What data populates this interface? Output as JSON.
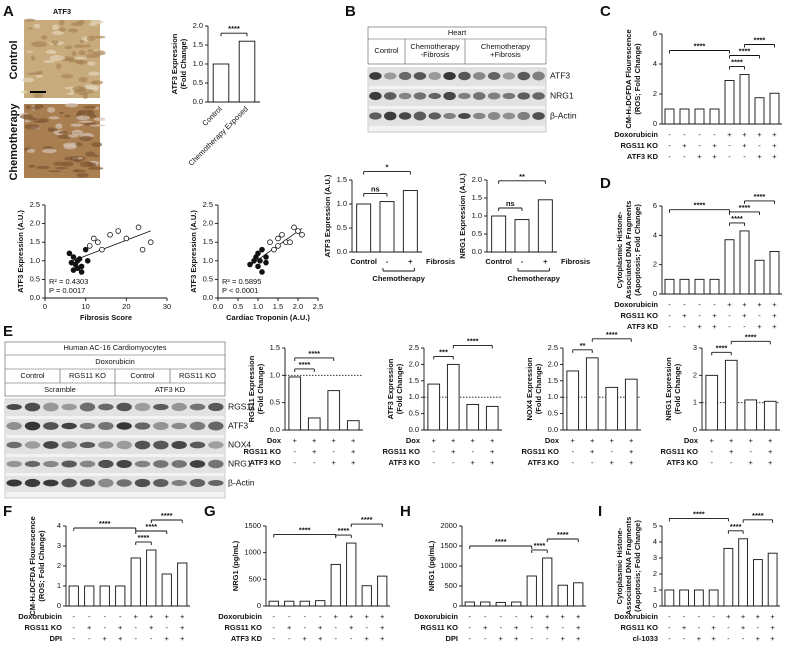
{
  "figure": {
    "panel_letters": [
      "A",
      "B",
      "C",
      "D",
      "E",
      "F",
      "G",
      "H",
      "I"
    ],
    "A": {
      "stain": "ATF3",
      "rows": [
        "Control",
        "Chemotherapy"
      ]
    },
    "B": {
      "tissue": "Heart",
      "groups": [
        [
          "Control"
        ],
        [
          "Chemotherapy",
          "-Fibrosis"
        ],
        [
          "Chemotherapy",
          "+Fibrosis"
        ]
      ],
      "bands": [
        "ATF3",
        "NRG1",
        "β-Actin"
      ]
    },
    "E": {
      "cells": "Human AC-16 Cardiomyocytes",
      "treatment": "Doxorubicin",
      "conditions": [
        "Control",
        "RGS11 KO",
        "Control",
        "RGS11 KO"
      ],
      "groups": [
        "Scramble",
        "ATF3 KD"
      ],
      "bands": [
        "RGS11",
        "ATF3",
        "NOX4",
        "NRG1",
        "β-Actin"
      ]
    }
  },
  "chart_data": [
    {
      "type": "bar",
      "ylabel": [
        "ATF3 Expression",
        "(Fold Change)"
      ],
      "categories": [
        "Control",
        "Chemotherapy Exposed"
      ],
      "values": [
        1.0,
        1.6
      ],
      "color": "#ffffff",
      "ylim": [
        0,
        2
      ],
      "yticks": [
        {
          "value": 0,
          "label": "0.0"
        },
        0.5,
        {
          "value": 1,
          "label": "1.0"
        },
        1.5,
        {
          "value": 2,
          "label": "2.0"
        }
      ],
      "significance": [
        "****"
      ]
    },
    {
      "type": "scatter",
      "ylabel": [
        "ATF3 Expression (A.U.)"
      ],
      "xlabel": "Fibrosis Score",
      "series": [
        {
          "color": "#111111",
          "filled": true,
          "x": [
            6,
            6.5,
            7,
            7,
            7.5,
            8,
            8,
            8.5,
            9,
            9,
            10,
            10.5
          ],
          "values": [
            1.2,
            0.95,
            1.1,
            0.75,
            0.9,
            1.0,
            0.8,
            1.05,
            0.85,
            0.7,
            1.3,
            1.0
          ]
        },
        {
          "color": "#111111",
          "filled": false,
          "x": [
            11,
            12,
            13,
            14,
            16,
            18,
            20,
            23,
            24,
            26
          ],
          "values": [
            1.4,
            1.6,
            1.5,
            1.3,
            1.7,
            1.8,
            1.6,
            1.9,
            1.3,
            1.5
          ]
        }
      ],
      "xlim": [
        0,
        30
      ],
      "xticks": [
        0,
        10,
        20,
        30
      ],
      "ylim": [
        0,
        2.5
      ],
      "yticks": [
        {
          "value": 0,
          "label": "0.0"
        },
        0.5,
        {
          "value": 1,
          "label": "1.0"
        },
        1.5,
        {
          "value": 2,
          "label": "2.0"
        },
        2.5
      ],
      "annotations": [
        "R² = 0.4303",
        "P = 0.0017"
      ]
    },
    {
      "type": "scatter",
      "ylabel": [
        "ATF3 Expression (A.U.)"
      ],
      "xlabel": "Cardiac  Troponin (A.U.)",
      "series": [
        {
          "color": "#111111",
          "filled": true,
          "x": [
            0.8,
            0.9,
            0.95,
            1.0,
            1.0,
            1.05,
            1.1,
            1.1,
            1.2,
            1.2
          ],
          "values": [
            0.9,
            1.0,
            1.1,
            0.85,
            1.2,
            1.0,
            0.7,
            1.3,
            1.1,
            0.95
          ]
        },
        {
          "color": "#111111",
          "filled": false,
          "x": [
            1.3,
            1.4,
            1.5,
            1.5,
            1.6,
            1.7,
            1.8,
            1.9,
            2.0,
            2.1
          ],
          "values": [
            1.5,
            1.3,
            1.6,
            1.4,
            1.7,
            1.5,
            1.5,
            1.9,
            1.8,
            1.7
          ]
        }
      ],
      "xlim": [
        0,
        2.5
      ],
      "xticks": [
        {
          "value": 0,
          "label": "0.0"
        },
        0.5,
        {
          "value": 1,
          "label": "1.0"
        },
        1.5,
        {
          "value": 2,
          "label": "2.0"
        },
        2.5
      ],
      "ylim": [
        0,
        2.5
      ],
      "yticks": [
        {
          "value": 0,
          "label": "0.0"
        },
        0.5,
        {
          "value": 1,
          "label": "1.0"
        },
        1.5,
        {
          "value": 2,
          "label": "2.0"
        },
        2.5
      ],
      "annotations": [
        "R² = 0.5895",
        "P < 0.0001"
      ]
    },
    {
      "type": "bar",
      "ylabel": [
        "ATF3 Expression (A.U.)"
      ],
      "categories": [
        "Control",
        "-",
        "+"
      ],
      "extra_label": "Fibrosis",
      "group_label": "Chemotherapy",
      "values": [
        1.0,
        1.05,
        1.28
      ],
      "color": "#ffffff",
      "ylim": [
        0,
        1.5
      ],
      "yticks": [
        {
          "value": 0,
          "label": "0.0"
        },
        0.5,
        {
          "value": 1,
          "label": "1.0"
        },
        1.5
      ],
      "significance": [
        "ns",
        "*"
      ]
    },
    {
      "type": "bar",
      "ylabel": [
        "NRG1 Expression (A.U.)"
      ],
      "categories": [
        "Control",
        "-",
        "+"
      ],
      "extra_label": "Fibrosis",
      "group_label": "Chemotherapy",
      "values": [
        1.0,
        0.9,
        1.45
      ],
      "color": "#ffffff",
      "ylim": [
        0,
        2
      ],
      "yticks": [
        {
          "value": 0,
          "label": "0.0"
        },
        0.5,
        {
          "value": 1,
          "label": "1.0"
        },
        1.5,
        {
          "value": 2,
          "label": "2.0"
        }
      ],
      "significance": [
        "ns",
        "**"
      ]
    },
    {
      "type": "bar",
      "ylabel": [
        "CM-H₂DCFDA Flourescence",
        "(ROS; Fold Change)"
      ],
      "values": [
        1.0,
        1.0,
        1.0,
        1.0,
        2.9,
        3.3,
        1.75,
        2.05
      ],
      "color": "#ffffff",
      "ylim": [
        0,
        6
      ],
      "yticks": [
        0,
        2,
        4,
        6
      ],
      "significance": [
        "****",
        "****",
        "****",
        "****"
      ],
      "conditions": [
        {
          "name": "Doxorubicin",
          "values": [
            "-",
            "-",
            "-",
            "-",
            "+",
            "+",
            "+",
            "+"
          ]
        },
        {
          "name": "RGS11 KO",
          "values": [
            "-",
            "+",
            "-",
            "+",
            "-",
            "+",
            "-",
            "+"
          ]
        },
        {
          "name": "ATF3 KD",
          "values": [
            "-",
            "-",
            "+",
            "+",
            "-",
            "-",
            "+",
            "+"
          ]
        }
      ]
    },
    {
      "type": "bar",
      "ylabel": [
        "Cytoplasmic Histone-",
        "Associated DNA Fragments",
        "(Apoptosis; Fold Change)"
      ],
      "values": [
        1.0,
        1.0,
        1.0,
        1.0,
        3.7,
        4.3,
        2.3,
        2.9
      ],
      "color": "#ffffff",
      "ylim": [
        0,
        6
      ],
      "yticks": [
        0,
        2,
        4,
        6
      ],
      "significance": [
        "****",
        "****",
        "****",
        "****"
      ],
      "conditions": [
        {
          "name": "Doxorubicin",
          "values": [
            "-",
            "-",
            "-",
            "-",
            "+",
            "+",
            "+",
            "+"
          ]
        },
        {
          "name": "RGS11 KO",
          "values": [
            "-",
            "+",
            "-",
            "+",
            "-",
            "+",
            "-",
            "+"
          ]
        },
        {
          "name": "ATF3 KD",
          "values": [
            "-",
            "-",
            "+",
            "+",
            "-",
            "-",
            "+",
            "+"
          ]
        }
      ]
    },
    {
      "type": "bar",
      "ylabel": [
        "RGS11 Expression",
        "(Fold Change)"
      ],
      "values": [
        0.97,
        0.22,
        0.72,
        0.17
      ],
      "color": "#ffffff",
      "refline": 1,
      "ylim": [
        0,
        1.5
      ],
      "yticks": [
        {
          "value": 0,
          "label": "0.0"
        },
        0.5,
        {
          "value": 1,
          "label": "1.0"
        },
        1.5
      ],
      "significance": [
        "****",
        "****"
      ],
      "conditions": [
        {
          "name": "Dox",
          "values": [
            "+",
            "+",
            "+",
            "+"
          ]
        },
        {
          "name": "RGS11 KO",
          "values": [
            "-",
            "+",
            "-",
            "+"
          ]
        },
        {
          "name": "ATF3 KO",
          "values": [
            "-",
            "-",
            "+",
            "+"
          ]
        }
      ]
    },
    {
      "type": "bar",
      "ylabel": [
        "ATF3 Expression",
        "(Fold Change)"
      ],
      "values": [
        1.4,
        2.0,
        0.78,
        0.72
      ],
      "color": "#ffffff",
      "refline": 1,
      "ylim": [
        0,
        2.5
      ],
      "yticks": [
        {
          "value": 0,
          "label": "0.0"
        },
        0.5,
        {
          "value": 1,
          "label": "1.0"
        },
        1.5,
        {
          "value": 2,
          "label": "2.0"
        },
        2.5
      ],
      "significance": [
        "***",
        "****"
      ],
      "conditions": [
        {
          "name": "Dox",
          "values": [
            "+",
            "+",
            "+",
            "+"
          ]
        },
        {
          "name": "RGS11 KO",
          "values": [
            "-",
            "+",
            "-",
            "+"
          ]
        },
        {
          "name": "ATF3 KO",
          "values": [
            "-",
            "-",
            "+",
            "+"
          ]
        }
      ]
    },
    {
      "type": "bar",
      "ylabel": [
        "NOX4 Expression",
        "(Fold Change)"
      ],
      "values": [
        1.8,
        2.2,
        1.3,
        1.55
      ],
      "color": "#ffffff",
      "refline": 1,
      "ylim": [
        0,
        2.5
      ],
      "yticks": [
        {
          "value": 0,
          "label": "0.0"
        },
        0.5,
        {
          "value": 1,
          "label": "1.0"
        },
        1.5,
        {
          "value": 2,
          "label": "2.0"
        },
        2.5
      ],
      "significance": [
        "**",
        "****"
      ],
      "conditions": [
        {
          "name": "Dox",
          "values": [
            "+",
            "+",
            "+",
            "+"
          ]
        },
        {
          "name": "RGS11 KO",
          "values": [
            "-",
            "+",
            "-",
            "+"
          ]
        },
        {
          "name": "ATF3 KO",
          "values": [
            "-",
            "-",
            "+",
            "+"
          ]
        }
      ]
    },
    {
      "type": "bar",
      "ylabel": [
        "NRG1 Expression",
        "(Fold Change)"
      ],
      "values": [
        2.0,
        2.55,
        1.1,
        1.05
      ],
      "color": "#ffffff",
      "refline": 1,
      "ylim": [
        0,
        3
      ],
      "yticks": [
        0,
        1,
        2,
        3
      ],
      "significance": [
        "****",
        "****"
      ],
      "conditions": [
        {
          "name": "Dox",
          "values": [
            "+",
            "+",
            "+",
            "+"
          ]
        },
        {
          "name": "RGS11 KO",
          "values": [
            "-",
            "+",
            "-",
            "+"
          ]
        },
        {
          "name": "ATF3 KO",
          "values": [
            "-",
            "-",
            "+",
            "+"
          ]
        }
      ]
    },
    {
      "type": "bar",
      "ylabel": [
        "CM-H₂DCFDA Flourescence",
        "(ROS; Fold Change)"
      ],
      "values": [
        1.0,
        1.0,
        1.0,
        1.0,
        2.4,
        2.8,
        1.6,
        2.15
      ],
      "color": "#ffffff",
      "ylim": [
        0,
        4
      ],
      "yticks": [
        0,
        1,
        2,
        3,
        4
      ],
      "significance": [
        "****",
        "****",
        "****",
        "****"
      ],
      "conditions": [
        {
          "name": "Doxorubicin",
          "values": [
            "-",
            "-",
            "-",
            "-",
            "+",
            "+",
            "+",
            "+"
          ]
        },
        {
          "name": "RGS11 KO",
          "values": [
            "-",
            "+",
            "-",
            "+",
            "-",
            "+",
            "-",
            "+"
          ]
        },
        {
          "name": "DPI",
          "values": [
            "-",
            "-",
            "+",
            "+",
            "-",
            "-",
            "+",
            "+"
          ]
        }
      ]
    },
    {
      "type": "bar",
      "ylabel": [
        "NRG1 (pg/mL)"
      ],
      "values": [
        90,
        90,
        90,
        100,
        780,
        1180,
        380,
        560
      ],
      "color": "#ffffff",
      "ylim": [
        0,
        1500
      ],
      "yticks": [
        0,
        500,
        1000,
        1500
      ],
      "significance": [
        "****",
        "****",
        "****"
      ],
      "conditions": [
        {
          "name": "Doxorubicin",
          "values": [
            "-",
            "-",
            "-",
            "-",
            "+",
            "+",
            "+",
            "+"
          ]
        },
        {
          "name": "RGS11 KO",
          "values": [
            "-",
            "+",
            "-",
            "+",
            "-",
            "+",
            "-",
            "+"
          ]
        },
        {
          "name": "ATF3 KD",
          "values": [
            "-",
            "-",
            "+",
            "+",
            "-",
            "-",
            "+",
            "+"
          ]
        }
      ]
    },
    {
      "type": "bar",
      "ylabel": [
        "NRG1 (pg/mL)"
      ],
      "values": [
        100,
        100,
        90,
        100,
        750,
        1200,
        520,
        580
      ],
      "color": "#ffffff",
      "ylim": [
        0,
        2000
      ],
      "yticks": [
        0,
        500,
        1000,
        1500,
        2000
      ],
      "significance": [
        "****",
        "****",
        "****"
      ],
      "conditions": [
        {
          "name": "Doxorubicin",
          "values": [
            "-",
            "-",
            "-",
            "-",
            "+",
            "+",
            "+",
            "+"
          ]
        },
        {
          "name": "RGS11 KO",
          "values": [
            "-",
            "+",
            "-",
            "+",
            "-",
            "+",
            "-",
            "+"
          ]
        },
        {
          "name": "DPI",
          "values": [
            "-",
            "-",
            "+",
            "+",
            "-",
            "-",
            "+",
            "+"
          ]
        }
      ]
    },
    {
      "type": "bar",
      "ylabel": [
        "Cytoplasmic Histone-",
        "Associated DNA Fragments",
        "(Apoptosis; Fold Change)"
      ],
      "values": [
        1.0,
        1.0,
        1.0,
        1.0,
        3.6,
        4.2,
        2.9,
        3.3
      ],
      "color": "#ffffff",
      "ylim": [
        0,
        5
      ],
      "yticks": [
        0,
        1,
        2,
        3,
        4,
        5
      ],
      "significance": [
        "****",
        "****",
        "****"
      ],
      "conditions": [
        {
          "name": "Doxorubicin",
          "values": [
            "-",
            "-",
            "-",
            "-",
            "+",
            "+",
            "+",
            "+"
          ]
        },
        {
          "name": "RGS11 KO",
          "values": [
            "-",
            "+",
            "-",
            "+",
            "-",
            "+",
            "-",
            "+"
          ]
        },
        {
          "name": "cl-1033",
          "values": [
            "-",
            "-",
            "+",
            "+",
            "-",
            "-",
            "+",
            "+"
          ]
        }
      ]
    }
  ]
}
